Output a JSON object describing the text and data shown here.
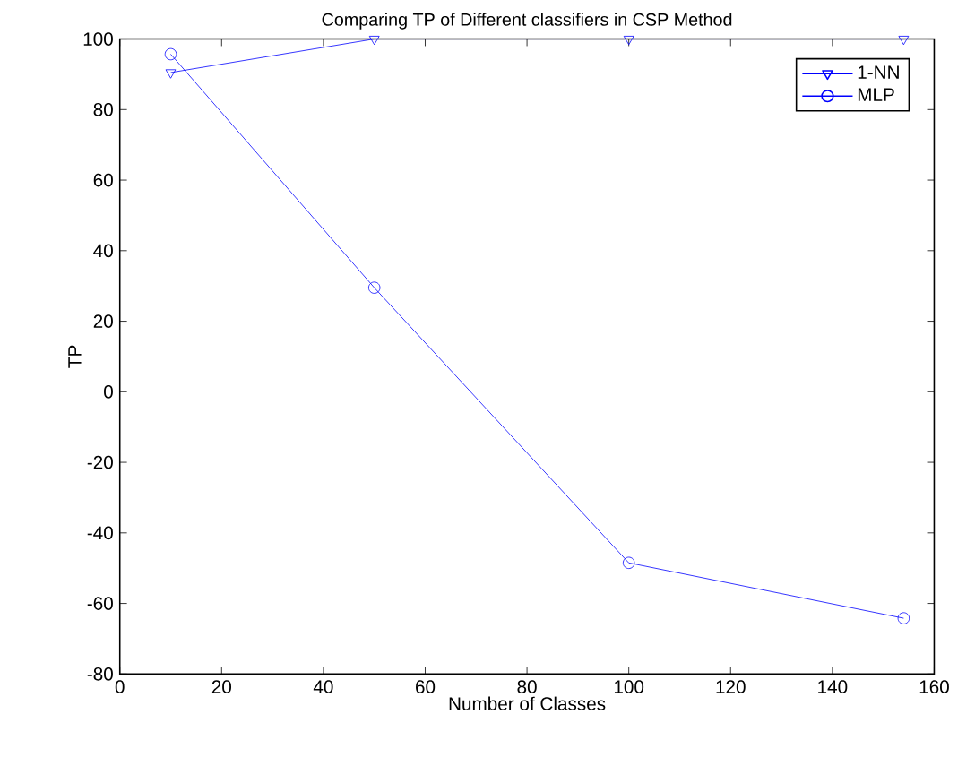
{
  "chart_data": {
    "type": "line",
    "title": "Comparing TP of Different classifiers in CSP Method",
    "xlabel": "Number of Classes",
    "ylabel": "TP",
    "series": [
      {
        "name": "1-NN",
        "color": "#0000ff",
        "marker": "triangle",
        "x": [
          10,
          50,
          100,
          154
        ],
        "values": [
          90.5,
          100,
          100,
          100
        ]
      },
      {
        "name": "MLP",
        "color": "#0000ff",
        "marker": "circle",
        "x": [
          10,
          50,
          100,
          154
        ],
        "values": [
          95.7,
          29.5,
          -48.5,
          -64.2
        ]
      }
    ],
    "xlim": [
      0,
      160
    ],
    "ylim": [
      -80,
      100
    ],
    "xticks": [
      0,
      20,
      40,
      60,
      80,
      100,
      120,
      140,
      160
    ],
    "yticks": [
      -80,
      -60,
      -40,
      -20,
      0,
      20,
      40,
      60,
      80,
      100
    ],
    "grid": false,
    "legend": "top right",
    "line_style": "solid"
  }
}
